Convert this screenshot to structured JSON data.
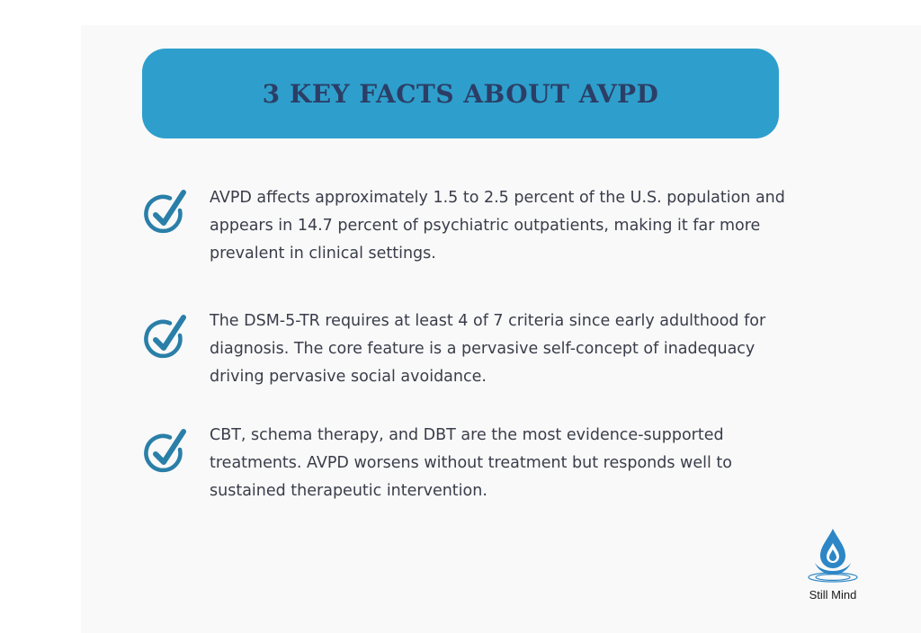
{
  "title": "3 KEY FACTS ABOUT AVPD",
  "facts": [
    {
      "icon": "check-circle-icon",
      "text": "AVPD affects approximately 1.5 to 2.5 percent of the U.S. population and appears in 14.7 percent of psychiatric outpatients, making it far more prevalent in clinical settings."
    },
    {
      "icon": "check-circle-icon",
      "text": "The DSM-5-TR requires at least 4 of 7 criteria since early adulthood for diagnosis. The core feature is a pervasive self-concept of inadequacy driving pervasive social avoidance."
    },
    {
      "icon": "check-circle-icon",
      "text": "CBT, schema therapy, and DBT are the most evidence-supported treatments. AVPD worsens without treatment but responds well to sustained therapeutic intervention."
    }
  ],
  "brand": "Still Mind",
  "colors": {
    "banner": "#2e9fcc",
    "title": "#2c3e66",
    "check": "#2a7fa8",
    "text": "#3a3d4a",
    "logo": "#2d86c5"
  }
}
